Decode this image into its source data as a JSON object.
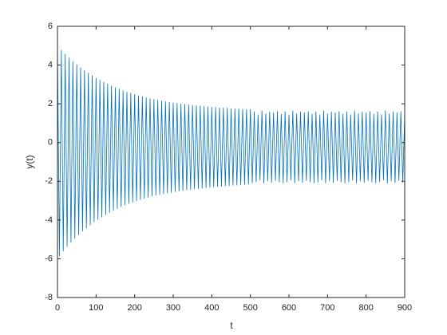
{
  "chart_data": {
    "type": "line",
    "xlabel": "t",
    "ylabel": "y(t)",
    "color": "#0072bd",
    "x": [
      0,
      5,
      10,
      15,
      20,
      25,
      30,
      35,
      40,
      45,
      50,
      55,
      60,
      65,
      70,
      75,
      80,
      85,
      90,
      95,
      100,
      105,
      110,
      115,
      120,
      125,
      130,
      135,
      140,
      145,
      150,
      155,
      160,
      165,
      170,
      175,
      180,
      185,
      190,
      195,
      200,
      205,
      210,
      215,
      220,
      225,
      230,
      235,
      240,
      245,
      250,
      255,
      260,
      265,
      270,
      275,
      280,
      285,
      290,
      295,
      300,
      305,
      310,
      315,
      320,
      325,
      330,
      335,
      340,
      345,
      350,
      355,
      360,
      365,
      370,
      375,
      380,
      385,
      390,
      395,
      400,
      405,
      410,
      415,
      420,
      425,
      430,
      435,
      440,
      445,
      450,
      455,
      460,
      465,
      470,
      475,
      480,
      485,
      490,
      495,
      500,
      505,
      510,
      515,
      520,
      525,
      530,
      535,
      540,
      545,
      550,
      555,
      560,
      565,
      570,
      575,
      580,
      585,
      590,
      595,
      600,
      605,
      610,
      615,
      620,
      625,
      630,
      635,
      640,
      645,
      650,
      655,
      660,
      665,
      670,
      675,
      680,
      685,
      690,
      695,
      700,
      705,
      710,
      715,
      720,
      725,
      730,
      735,
      740,
      745,
      750,
      755,
      760,
      765,
      770,
      775,
      780,
      785,
      790,
      795,
      800,
      805,
      810,
      815,
      820,
      825,
      830,
      835,
      840,
      845,
      850,
      855,
      860,
      865,
      870,
      875,
      880,
      885,
      890,
      895,
      900
    ],
    "values": [
      5.0,
      -5.87,
      4.78,
      -5.62,
      4.58,
      -5.38,
      4.38,
      -5.17,
      4.2,
      -4.96,
      4.04,
      -4.77,
      3.88,
      -4.59,
      3.73,
      -4.43,
      3.6,
      -4.27,
      3.47,
      -4.12,
      3.34,
      -3.99,
      3.23,
      -3.86,
      3.13,
      -3.74,
      3.03,
      -3.63,
      2.94,
      -3.52,
      2.85,
      -3.42,
      2.77,
      -3.33,
      2.69,
      -3.24,
      2.62,
      -3.16,
      2.56,
      -3.09,
      2.5,
      -3.02,
      2.43,
      -2.96,
      2.38,
      -2.9,
      2.33,
      -2.84,
      2.28,
      -2.79,
      2.24,
      -2.74,
      2.2,
      -2.7,
      2.16,
      -2.66,
      2.13,
      -2.62,
      2.1,
      -2.59,
      2.06,
      -2.55,
      2.04,
      -2.52,
      2.01,
      -2.49,
      1.99,
      -2.46,
      1.96,
      -2.44,
      1.94,
      -2.41,
      1.92,
      -2.39,
      1.9,
      -2.37,
      1.88,
      -2.35,
      1.86,
      -2.33,
      1.84,
      -2.31,
      1.83,
      -2.29,
      1.81,
      -2.27,
      1.8,
      -2.25,
      1.79,
      -2.24,
      1.77,
      -2.22,
      1.76,
      -2.21,
      1.75,
      -2.2,
      1.74,
      -2.18,
      1.73,
      -2.17,
      1.72,
      -2.1,
      1.6,
      -2.05,
      1.45,
      -1.95,
      1.65,
      -2.1,
      1.5,
      -2.0,
      1.6,
      -2.08,
      1.55,
      -1.98,
      1.62,
      -2.05,
      1.48,
      -2.1,
      1.6,
      -2.05,
      1.45,
      -1.95,
      1.65,
      -2.1,
      1.5,
      -2.0,
      1.6,
      -2.08,
      1.55,
      -1.98,
      1.62,
      -2.05,
      1.48,
      -2.1,
      1.6,
      -2.05,
      1.45,
      -1.95,
      1.65,
      -2.1,
      1.5,
      -2.0,
      1.6,
      -2.08,
      1.55,
      -1.98,
      1.62,
      -2.05,
      1.48,
      -2.1,
      1.6,
      -2.05,
      1.45,
      -1.95,
      1.65,
      -2.1,
      1.5,
      -2.0,
      1.6,
      -2.08,
      1.55,
      -1.98,
      1.62,
      -2.05,
      1.48,
      -2.1,
      1.6,
      -2.05,
      1.45,
      -1.95,
      1.65,
      -2.1,
      1.5,
      -2.0,
      1.6,
      -2.08,
      1.55,
      -1.98,
      1.62,
      -2.05,
      1.48
    ],
    "xlim": [
      0,
      900
    ],
    "xticks": [
      0,
      100,
      200,
      300,
      400,
      500,
      600,
      700,
      800,
      900
    ],
    "ylim": [
      -8,
      6
    ],
    "yticks": [
      -8,
      -6,
      -4,
      -2,
      0,
      2,
      4,
      6
    ]
  }
}
